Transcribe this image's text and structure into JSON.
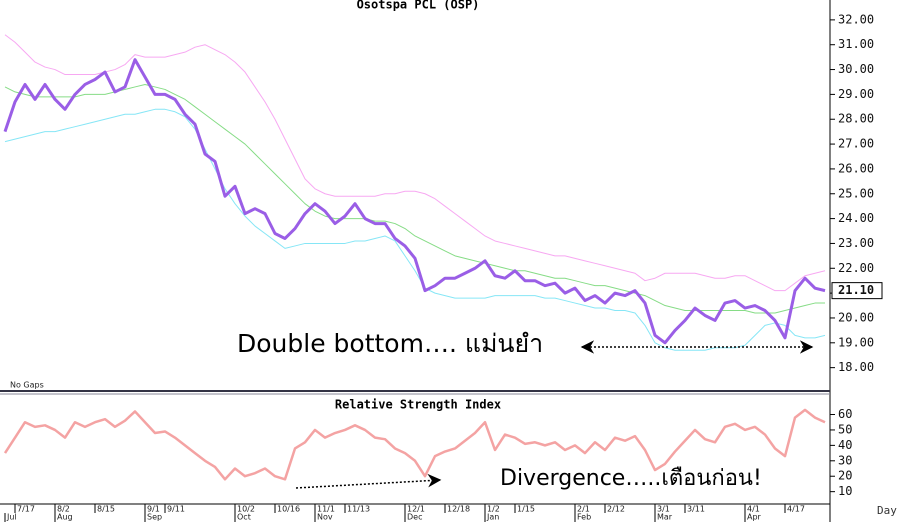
{
  "chart_data": [
    {
      "type": "line",
      "title": "Osotspa PCL (OSP)",
      "note": "No Gaps",
      "annotation": "Double bottom…. แม่นยำ",
      "ylim": [
        17.1,
        32.8
      ],
      "yticks": [
        {
          "value": 18,
          "label": "18.00"
        },
        {
          "value": 19,
          "label": "19.00"
        },
        {
          "value": 20,
          "label": "20.00"
        },
        {
          "value": 21,
          "label": "21.00"
        },
        {
          "value": 22,
          "label": "22.00"
        },
        {
          "value": 23,
          "label": "23.00"
        },
        {
          "value": 24,
          "label": "24.00"
        },
        {
          "value": 25,
          "label": "25.00"
        },
        {
          "value": 26,
          "label": "26.00"
        },
        {
          "value": 27,
          "label": "27.00"
        },
        {
          "value": 28,
          "label": "28.00"
        },
        {
          "value": 29,
          "label": "29.00"
        },
        {
          "value": 30,
          "label": "30.00"
        },
        {
          "value": 31,
          "label": "31.00"
        },
        {
          "value": 32,
          "label": "32.00"
        }
      ],
      "last_label": {
        "value": 21.1,
        "label": "21.10"
      },
      "series": [
        {
          "color": "#f7a8f2",
          "values": [
            31.4,
            31.1,
            30.7,
            30.3,
            30.1,
            30.0,
            29.8,
            29.8,
            29.8,
            29.8,
            29.9,
            30.0,
            30.2,
            30.6,
            30.5,
            30.5,
            30.5,
            30.6,
            30.7,
            30.9,
            31.0,
            30.8,
            30.6,
            30.3,
            29.9,
            29.3,
            28.7,
            28.0,
            27.2,
            26.4,
            25.6,
            25.2,
            25.0,
            24.9,
            24.9,
            24.9,
            24.9,
            24.9,
            25.0,
            25.0,
            25.1,
            25.1,
            25.0,
            24.8,
            24.5,
            24.2,
            23.9,
            23.6,
            23.3,
            23.1,
            23.0,
            22.9,
            22.8,
            22.7,
            22.6,
            22.5,
            22.5,
            22.4,
            22.3,
            22.2,
            22.1,
            22.0,
            21.9,
            21.8,
            21.5,
            21.6,
            21.8,
            21.8,
            21.8,
            21.8,
            21.7,
            21.6,
            21.6,
            21.7,
            21.7,
            21.5,
            21.3,
            21.1,
            21.1,
            21.4,
            21.7,
            21.8,
            21.9
          ]
        },
        {
          "color": "#86dc86",
          "values": [
            29.3,
            29.1,
            29.0,
            28.9,
            28.9,
            28.9,
            28.9,
            28.9,
            29.0,
            29.0,
            29.0,
            29.1,
            29.2,
            29.3,
            29.4,
            29.3,
            29.2,
            29.0,
            28.8,
            28.5,
            28.2,
            27.9,
            27.6,
            27.3,
            27.0,
            26.6,
            26.2,
            25.8,
            25.4,
            25.0,
            24.6,
            24.3,
            24.1,
            24.0,
            24.0,
            24.0,
            24.0,
            23.9,
            23.9,
            23.8,
            23.6,
            23.3,
            23.1,
            22.9,
            22.7,
            22.5,
            22.4,
            22.3,
            22.2,
            22.1,
            22.0,
            21.9,
            21.9,
            21.8,
            21.7,
            21.6,
            21.6,
            21.5,
            21.4,
            21.3,
            21.3,
            21.2,
            21.1,
            21.0,
            20.9,
            20.7,
            20.5,
            20.4,
            20.3,
            20.3,
            20.3,
            20.3,
            20.3,
            20.3,
            20.3,
            20.2,
            20.2,
            20.2,
            20.3,
            20.4,
            20.5,
            20.6,
            20.6
          ]
        },
        {
          "color": "#86e6f6",
          "values": [
            27.1,
            27.2,
            27.3,
            27.4,
            27.5,
            27.5,
            27.6,
            27.7,
            27.8,
            27.9,
            28.0,
            28.1,
            28.2,
            28.2,
            28.3,
            28.4,
            28.4,
            28.3,
            28.1,
            27.6,
            26.8,
            26.0,
            25.2,
            24.6,
            24.1,
            23.7,
            23.4,
            23.1,
            22.8,
            22.9,
            23.0,
            23.0,
            23.0,
            23.0,
            23.0,
            23.1,
            23.1,
            23.2,
            23.3,
            23.1,
            22.5,
            21.9,
            21.2,
            21.0,
            20.9,
            20.8,
            20.8,
            20.8,
            20.8,
            20.9,
            20.9,
            20.9,
            20.9,
            20.9,
            20.8,
            20.8,
            20.7,
            20.6,
            20.5,
            20.4,
            20.4,
            20.3,
            20.3,
            20.2,
            19.7,
            19.0,
            18.8,
            18.7,
            18.7,
            18.7,
            18.7,
            18.8,
            18.8,
            18.8,
            18.9,
            19.3,
            19.7,
            19.8,
            19.7,
            19.3,
            19.2,
            19.2,
            19.3
          ]
        },
        {
          "color": "#9a5ee6",
          "values": [
            27.5,
            28.7,
            29.4,
            28.8,
            29.4,
            28.8,
            28.4,
            29.0,
            29.4,
            29.6,
            29.9,
            29.1,
            29.3,
            30.4,
            29.7,
            29.0,
            29.0,
            28.8,
            28.2,
            27.8,
            26.6,
            26.3,
            24.9,
            25.3,
            24.2,
            24.4,
            24.2,
            23.4,
            23.2,
            23.6,
            24.2,
            24.6,
            24.3,
            23.8,
            24.1,
            24.6,
            24.0,
            23.8,
            23.8,
            23.2,
            22.9,
            22.4,
            21.1,
            21.3,
            21.6,
            21.6,
            21.8,
            22.0,
            22.3,
            21.7,
            21.6,
            21.9,
            21.5,
            21.5,
            21.3,
            21.4,
            21.0,
            21.2,
            20.7,
            20.9,
            20.6,
            21.0,
            20.9,
            21.1,
            20.6,
            19.3,
            19.0,
            19.5,
            19.9,
            20.4,
            20.1,
            19.9,
            20.6,
            20.7,
            20.4,
            20.5,
            20.3,
            19.9,
            19.2,
            21.1,
            21.6,
            21.2,
            21.1
          ]
        }
      ]
    },
    {
      "type": "line",
      "title": "Relative Strength Index",
      "annotation": "Divergence…..เตือนก่อน!",
      "x_label": "Day",
      "ylim": [
        2,
        72
      ],
      "yticks": [
        10,
        20,
        30,
        40,
        50,
        60
      ],
      "color": "#f4a3a3",
      "values": [
        35,
        45,
        55,
        52,
        53,
        50,
        45,
        55,
        52,
        55,
        57,
        52,
        56,
        62,
        55,
        48,
        49,
        45,
        40,
        35,
        30,
        26,
        18,
        25,
        20,
        22,
        25,
        20,
        18,
        38,
        42,
        50,
        45,
        48,
        50,
        53,
        50,
        45,
        44,
        38,
        35,
        30,
        20,
        33,
        36,
        38,
        43,
        48,
        55,
        37,
        47,
        45,
        41,
        42,
        40,
        42,
        37,
        40,
        35,
        42,
        37,
        45,
        43,
        46,
        37,
        24,
        28,
        36,
        43,
        50,
        44,
        42,
        52,
        54,
        50,
        52,
        47,
        38,
        33,
        58,
        63,
        58,
        55
      ],
      "categories": [
        null,
        "7/17",
        null,
        null,
        null,
        "8/2",
        null,
        null,
        null,
        "8/15",
        null,
        null,
        null,
        null,
        "9/1",
        null,
        "9/11",
        null,
        null,
        null,
        null,
        null,
        null,
        "10/2",
        null,
        null,
        null,
        "10/16",
        null,
        null,
        null,
        "11/1",
        null,
        null,
        "11/13",
        null,
        null,
        null,
        null,
        null,
        "12/1",
        null,
        null,
        null,
        "12/18",
        null,
        null,
        null,
        "1/2",
        null,
        null,
        "1/15",
        null,
        null,
        null,
        null,
        null,
        "2/1",
        null,
        null,
        "2/12",
        null,
        null,
        null,
        null,
        "3/1",
        null,
        null,
        "3/11",
        null,
        null,
        null,
        null,
        null,
        "4/1",
        null,
        null,
        null,
        "4/17",
        null,
        null,
        null,
        null
      ],
      "months": [
        "Jul",
        null,
        null,
        null,
        null,
        "Aug",
        null,
        null,
        null,
        null,
        null,
        null,
        null,
        null,
        "Sep",
        null,
        null,
        null,
        null,
        null,
        null,
        null,
        null,
        "Oct",
        null,
        null,
        null,
        null,
        null,
        null,
        null,
        "Nov",
        null,
        null,
        null,
        null,
        null,
        null,
        null,
        null,
        "Dec",
        null,
        null,
        null,
        null,
        null,
        null,
        null,
        "Jan",
        null,
        null,
        null,
        null,
        null,
        null,
        null,
        null,
        "Feb",
        null,
        null,
        null,
        null,
        null,
        null,
        null,
        "Mar",
        null,
        null,
        null,
        null,
        null,
        null,
        null,
        null,
        "Apr",
        null,
        null,
        null,
        null,
        null,
        null,
        null,
        null
      ]
    }
  ]
}
